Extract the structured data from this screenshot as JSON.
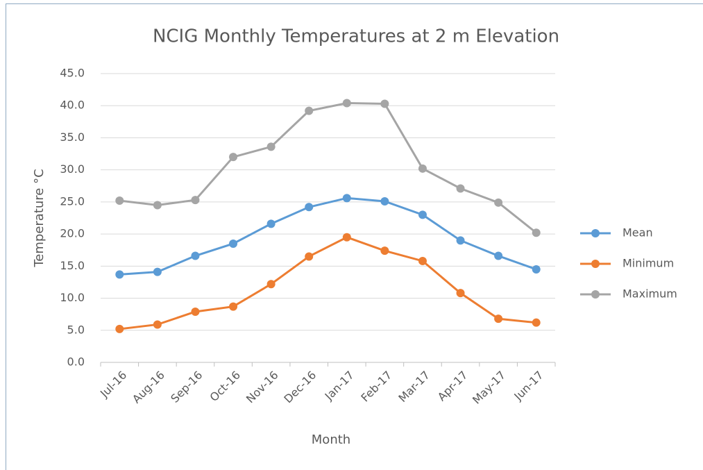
{
  "chart_data": {
    "type": "line",
    "title": "NCIG Monthly Temperatures at 2 m Elevation",
    "x_label": "Month",
    "y_label": "Temperature °C",
    "categories": [
      "Jul-16",
      "Aug-16",
      "Sep-16",
      "Oct-16",
      "Nov-16",
      "Dec-16",
      "Jan-17",
      "Feb-17",
      "Mar-17",
      "Apr-17",
      "May-17",
      "Jun-17"
    ],
    "series": [
      {
        "name": "Mean",
        "color": "#5b9bd5",
        "values": [
          13.7,
          14.1,
          16.6,
          18.5,
          21.6,
          24.2,
          25.6,
          25.1,
          23.0,
          19.0,
          16.6,
          14.5
        ]
      },
      {
        "name": "Minimum",
        "color": "#ed7d31",
        "values": [
          5.2,
          5.9,
          7.9,
          8.7,
          12.2,
          16.5,
          19.5,
          17.4,
          15.8,
          10.8,
          6.8,
          6.2
        ]
      },
      {
        "name": "Maximum",
        "color": "#a5a5a5",
        "values": [
          25.2,
          24.5,
          25.3,
          32.0,
          33.6,
          39.2,
          40.4,
          40.3,
          30.2,
          27.1,
          24.9,
          20.2
        ]
      }
    ],
    "ylim": [
      0,
      45
    ],
    "yticks": [
      {
        "value": 0,
        "label": "0.0"
      },
      {
        "value": 5,
        "label": "5.0"
      },
      {
        "value": 10,
        "label": "10.0"
      },
      {
        "value": 15,
        "label": "15.0"
      },
      {
        "value": 20,
        "label": "20.0"
      },
      {
        "value": 25,
        "label": "25.0"
      },
      {
        "value": 30,
        "label": "30.0"
      },
      {
        "value": 35,
        "label": "35.0"
      },
      {
        "value": 40,
        "label": "40.0"
      },
      {
        "value": 45,
        "label": "45.0"
      }
    ],
    "grid": true,
    "legend": "right"
  }
}
